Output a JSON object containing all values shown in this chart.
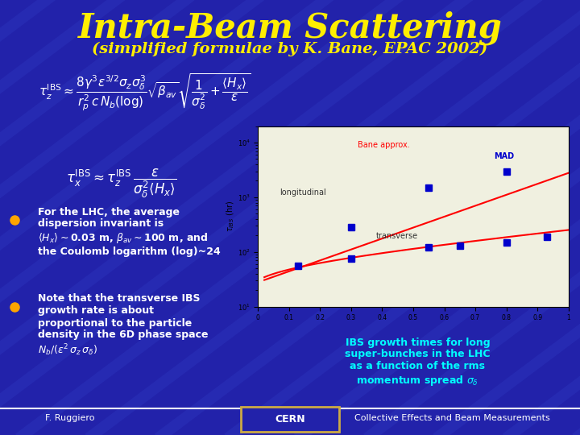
{
  "bg_color": "#2222aa",
  "title": "Intra-Beam Scattering",
  "subtitle": "(simplified formulae by K. Bane, EPAC 2002)",
  "title_color": "#ffee00",
  "subtitle_color": "#ffee00",
  "footer_left": "F. Ruggiero",
  "footer_center": "CERN",
  "footer_right": "Collective Effects and Beam Measurements",
  "footer_color": "#ffffff",
  "bullet_color": "#ffffff",
  "formula_color": "#ffffff",
  "caption_color": "#00ffff"
}
